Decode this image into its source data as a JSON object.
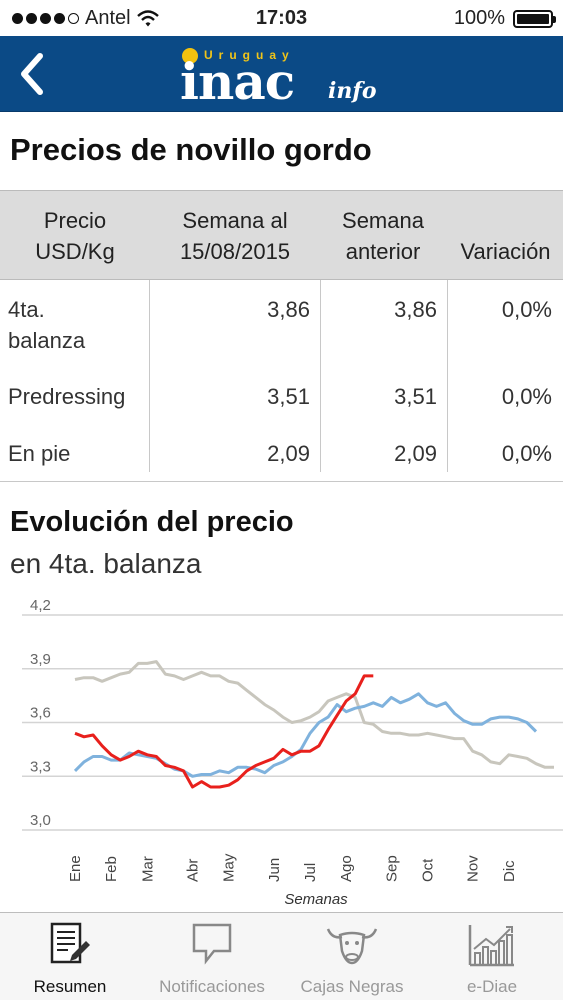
{
  "status_bar": {
    "carrier": "Antel",
    "time": "17:03",
    "battery": "100%"
  },
  "header": {
    "logo_top": "Uruguay",
    "logo_main": "inac",
    "logo_sub": "info"
  },
  "page_title": "Precios de novillo gordo",
  "table": {
    "headers": {
      "col1_line1": "Precio",
      "col1_line2": "USD/Kg",
      "col2_line1": "Semana al",
      "col2_line2": "15/08/2015",
      "col3_line1": "Semana",
      "col3_line2": "anterior",
      "col4": "Variación"
    },
    "rows": [
      {
        "label_line1": "4ta.",
        "label_line2": "balanza",
        "current": "3,86",
        "previous": "3,86",
        "variation": "0,0%"
      },
      {
        "label_line1": "Predressing",
        "label_line2": "",
        "current": "3,51",
        "previous": "3,51",
        "variation": "0,0%"
      },
      {
        "label_line1": "En pie",
        "label_line2": "",
        "current": "2,09",
        "previous": "2,09",
        "variation": "0,0%"
      }
    ]
  },
  "chart_heading": {
    "title": "Evolución del precio",
    "subtitle": "en 4ta. balanza"
  },
  "chart_data": {
    "type": "line",
    "xlabel": "Semanas",
    "ylabel": "",
    "ylim": [
      3.0,
      4.2
    ],
    "yticks": [
      "3,0",
      "3,3",
      "3,6",
      "3,9",
      "4,2"
    ],
    "ytick_values": [
      3.0,
      3.3,
      3.6,
      3.9,
      4.2
    ],
    "month_labels": [
      "Ene",
      "Feb",
      "Mar",
      "Abr",
      "May",
      "Jun",
      "Jul",
      "Ago",
      "Sep",
      "Oct",
      "Nov",
      "Dic"
    ],
    "month_week_index": [
      0,
      4,
      8,
      13,
      17,
      22,
      26,
      30,
      35,
      39,
      44,
      48
    ],
    "grid": true,
    "legend": "none",
    "series": [
      {
        "color": "#c8c6bd",
        "values": [
          3.84,
          3.85,
          3.85,
          3.83,
          3.85,
          3.87,
          3.88,
          3.93,
          3.93,
          3.94,
          3.87,
          3.86,
          3.84,
          3.86,
          3.88,
          3.86,
          3.86,
          3.83,
          3.82,
          3.78,
          3.74,
          3.7,
          3.67,
          3.63,
          3.6,
          3.61,
          3.63,
          3.66,
          3.72,
          3.74,
          3.76,
          3.74,
          3.6,
          3.59,
          3.55,
          3.54,
          3.54,
          3.53,
          3.53,
          3.54,
          3.53,
          3.52,
          3.51,
          3.51,
          3.44,
          3.42,
          3.38,
          3.37,
          3.42,
          3.41,
          3.4,
          3.37,
          3.35,
          3.35
        ]
      },
      {
        "color": "#7fb2dd",
        "values": [
          3.33,
          3.38,
          3.41,
          3.41,
          3.39,
          3.39,
          3.43,
          3.42,
          3.41,
          3.4,
          3.37,
          3.34,
          3.33,
          3.3,
          3.31,
          3.31,
          3.33,
          3.32,
          3.35,
          3.35,
          3.34,
          3.32,
          3.36,
          3.38,
          3.41,
          3.45,
          3.54,
          3.6,
          3.63,
          3.7,
          3.66,
          3.68,
          3.69,
          3.71,
          3.69,
          3.74,
          3.71,
          3.73,
          3.76,
          3.71,
          3.69,
          3.71,
          3.65,
          3.61,
          3.59,
          3.59,
          3.62,
          3.63,
          3.63,
          3.62,
          3.6,
          3.55
        ]
      },
      {
        "color": "#e8201c",
        "values": [
          3.54,
          3.52,
          3.53,
          3.47,
          3.42,
          3.39,
          3.41,
          3.44,
          3.42,
          3.41,
          3.36,
          3.35,
          3.33,
          3.24,
          3.27,
          3.24,
          3.24,
          3.25,
          3.28,
          3.33,
          3.36,
          3.38,
          3.4,
          3.45,
          3.42,
          3.44,
          3.44,
          3.47,
          3.56,
          3.64,
          3.72,
          3.76,
          3.86,
          3.86
        ]
      }
    ]
  },
  "tabs": [
    {
      "label": "Resumen",
      "icon": "resumen-icon"
    },
    {
      "label": "Notificaciones",
      "icon": "notificaciones-icon"
    },
    {
      "label": "Cajas Negras",
      "icon": "bull-icon"
    },
    {
      "label": "e-Diae",
      "icon": "bar-chart-icon"
    }
  ]
}
